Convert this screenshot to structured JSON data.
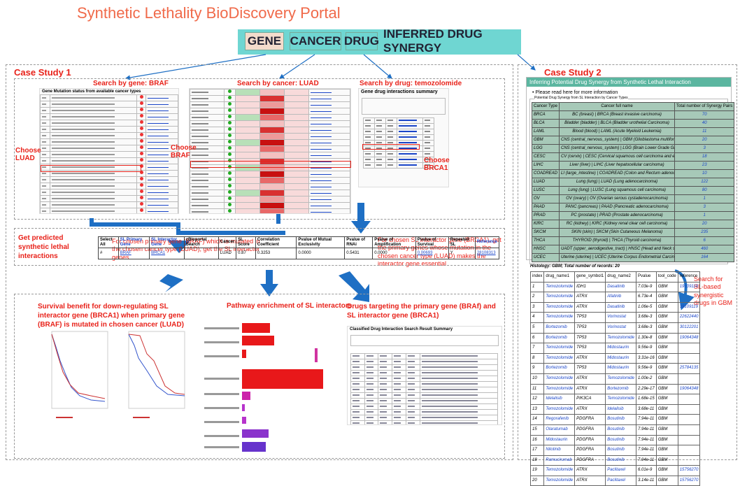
{
  "title": "Synthetic Lethality BioDiscovery Portal",
  "nav": [
    "GENE",
    "CANCER",
    "DRUG",
    "INFERRED DRUG SYNERGY"
  ],
  "colors": {
    "accent": "#e8221a",
    "nav": "#6fd6d2",
    "arrow": "#1e6fc4"
  },
  "cs1": {
    "title": "Case Study 1",
    "s1": "Search by gene: BRAF",
    "s2": "Search by cancer: LUAD",
    "s3": "Search by drug: temozolomide",
    "choose_luad": "Choose\nLUAD",
    "choose_braf": "Choose\nBRAF",
    "choose_brca1": "Choose\nBRCA1",
    "t1": "Gene Mutation status from available cancer types",
    "t3": "Gene drug interactions summary",
    "note_l": "For chosen primary gene (BRAF) which is mutated in the chosen cancer type (LUAD), get the SL interactor genes",
    "note_r": "For chosen SL interactor gene (BRCA1), get the primary genes whose mutation in the chosen cancer type (LUAD) makes the interactor gene essential",
    "predicted": "Get predicted synthetic lethal interactions",
    "result": {
      "headers": [
        "Select All",
        "SL Primary Gene",
        "SL Interactor Gene",
        "cBioportal Search",
        "Cancer",
        "SL Score",
        "Correlation Coefficient",
        "Pvalue of Mutual Exclusivity",
        "Pvalue of RNAi",
        "Pvalue of Amplification",
        "Pvalue of Survival",
        "Repeated SL",
        "Reference"
      ],
      "row": [
        "#",
        "BRAF",
        "BRCA1",
        "",
        "LUAD",
        "0.87",
        "0.3253",
        "0.0000",
        "0.5431",
        "0.0000",
        "0.00693",
        "Y",
        "28108313"
      ]
    },
    "b1": "Survival  benefit for down-regulating SL interactor gene (BRCA1) when primary gene (BRAF) is mutated in chosen cancer (LUAD)",
    "b2": "Pathway enrichment of SL interactors",
    "b3": "Drugs targeting the primary gene (BRAf) and SL interactor gene (BRCA1)",
    "b3_sub": "Classified Drug Interaction Search Result Summary"
  },
  "cs2": {
    "title": "Case Study 2",
    "header": "Inferring Potential Drug Synergy from Synthetic Lethal Interaction",
    "read": "Please read here for more information",
    "legend": "Potential Drug Synergy from SL Interaction by Cancer Types",
    "cols": [
      "Cancer Type",
      "Cancer full name",
      "Total number of Synergy Pairs"
    ],
    "rows": [
      [
        "BRCA",
        "BC (breast) | BRCA (Breast invasive carcinoma)",
        "70"
      ],
      [
        "BLCA",
        "Bladder (bladder) | BLCA (Bladder urothelial Carcinoma)",
        "40"
      ],
      [
        "LAML",
        "Blood (blood) | LAML (Acute Myeloid Leukemia)",
        "11"
      ],
      [
        "GBM",
        "CNS (central_nervous_system) | GBM (Glioblastoma multiforme)",
        "20"
      ],
      [
        "LGG",
        "CNS (central_nervous_system) | LGG (Brain Lower Grade Glioma)",
        "3"
      ],
      [
        "CESC",
        "CV (cervix) | CESC (Cervical squamous cell carcinoma and endocervical adenocarcinoma)",
        "18"
      ],
      [
        "LIHC",
        "Liver (liver) | LIHC (Liver hepatocellular carcinoma)",
        "23"
      ],
      [
        "COADREAD",
        "LI (large_intestine) | COADREAD (Colon and Rectum adenocarcinoma)",
        "10"
      ],
      [
        "LUAD",
        "Lung (lung) | LUAD (Lung adenocarcinoma)",
        "122"
      ],
      [
        "LUSC",
        "Lung (lung) | LUSC (Lung squamous cell carcinoma)",
        "80"
      ],
      [
        "OV",
        "OV (ovary) | OV (Ovarian serous cystadenocarcinoma)",
        "1"
      ],
      [
        "PAAD",
        "PANC (pancreas) | PAAD (Pancreatic adenocarcinoma)",
        "3"
      ],
      [
        "PRAD",
        "PC (prostate) | PRAD (Prostate adenocarcinoma)",
        "1"
      ],
      [
        "KIRC",
        "RC (kidney) | KIRC (Kidney renal clear cell carcinoma)",
        "20"
      ],
      [
        "SKCM",
        "SKIN (skin) | SKCM (Skin Cutaneous Melanoma)",
        "235"
      ],
      [
        "THCA",
        "THYROID (thyroid) | THCA (Thyroid carcinoma)",
        "6"
      ],
      [
        "HNSC",
        "UADT (upper_aerodigestive_tract) | HNSC (Head and Neck squamous cell carcinoma)",
        "460"
      ],
      [
        "UCEC",
        "Uterine (uterine) | UCEC (Uterine Corpus Endometrial Carcinoma)",
        "164"
      ]
    ],
    "histology": "Histology: GBM; Total number of records: 20",
    "search": "Search for SL-based synergistic drugs in GBM",
    "sl_cols": [
      "index",
      "drug_name1",
      "gene_symbol1",
      "drug_name2",
      "Pvalue",
      "tool_code",
      "reference"
    ],
    "sl_rows": [
      [
        "1",
        "Temozolomide",
        "IDH1",
        "Dasatinib",
        "7.03e-9",
        "GBM",
        "19109119"
      ],
      [
        "2",
        "Temozolomide",
        "ATRX",
        "Afatinib",
        "6.73e-4",
        "GBM",
        ""
      ],
      [
        "3",
        "Temozolomide",
        "ATRX",
        "Dasatinib",
        "1.06e-5",
        "GBM",
        "19109119"
      ],
      [
        "4",
        "Temozolomide",
        "TP53",
        "Vorinostat",
        "3.68e-3",
        "GBM",
        "22622440"
      ],
      [
        "5",
        "Bortezomib",
        "TP53",
        "Vorinostat",
        "3.68e-3",
        "GBM",
        "30122201"
      ],
      [
        "6",
        "Bortezomib",
        "TP53",
        "Temozolomide",
        "1.30e-8",
        "GBM",
        "19064348"
      ],
      [
        "7",
        "Temozolomide",
        "TP53",
        "Midostaurin",
        "9.56e-9",
        "GBM",
        ""
      ],
      [
        "8",
        "Temozolomide",
        "ATRX",
        "Midostaurin",
        "3.31e-16",
        "GBM",
        ""
      ],
      [
        "9",
        "Bortezomib",
        "TP53",
        "Midostaurin",
        "9.56e-9",
        "GBM",
        "25784135"
      ],
      [
        "10",
        "Temozolomide",
        "ATRX",
        "Temozolomide",
        "1.00e-2",
        "GBM",
        ""
      ],
      [
        "11",
        "Temozolomide",
        "ATRX",
        "Bortezomib",
        "2.29e-17",
        "GBM",
        "19064348"
      ],
      [
        "12",
        "Idelalisib",
        "PIK3CA",
        "Temozolomide",
        "1.68e-15",
        "GBM",
        ""
      ],
      [
        "13",
        "Temozolomide",
        "ATRX",
        "Idelalisib",
        "3.68e-11",
        "GBM",
        ""
      ],
      [
        "14",
        "Regorafenib",
        "PDGFRA",
        "Bosutinib",
        "7.94e-11",
        "GBM",
        ""
      ],
      [
        "15",
        "Olaratumab",
        "PDGFRA",
        "Bosutinib",
        "7.94e-11",
        "GBM",
        ""
      ],
      [
        "16",
        "Midostaurin",
        "PDGFRA",
        "Bosutinib",
        "7.94e-11",
        "GBM",
        ""
      ],
      [
        "17",
        "Nilotinib",
        "PDGFRA",
        "Bosutinib",
        "7.94e-11",
        "GBM",
        ""
      ],
      [
        "18",
        "Ramucirumab",
        "PDGFRA",
        "Bosutinib",
        "7.94e-11",
        "GBM",
        ""
      ],
      [
        "19",
        "Temozolomide",
        "ATRX",
        "Paclitaxel",
        "6.01e-9",
        "GBM",
        "15756270"
      ],
      [
        "20",
        "Temozolomide",
        "ATRX",
        "Paclitaxel",
        "3.14e-11",
        "GBM",
        "15756270"
      ]
    ]
  }
}
